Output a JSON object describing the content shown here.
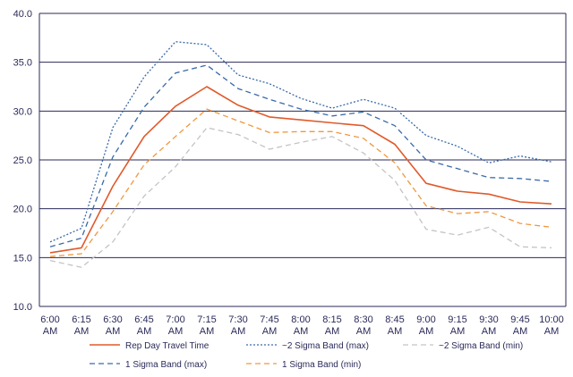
{
  "chart_data": {
    "type": "line",
    "title": "",
    "xlabel": "",
    "ylabel": "",
    "ylim": [
      10.0,
      40.0
    ],
    "yticks": [
      "10.0",
      "15.0",
      "20.0",
      "25.0",
      "30.0",
      "35.0",
      "40.0"
    ],
    "x": [
      [
        "6:00",
        "AM"
      ],
      [
        "6:15",
        "AM"
      ],
      [
        "6:30",
        "AM"
      ],
      [
        "6:45",
        "AM"
      ],
      [
        "7:00",
        "AM"
      ],
      [
        "7:15",
        "AM"
      ],
      [
        "7:30",
        "AM"
      ],
      [
        "7:45",
        "AM"
      ],
      [
        "8:00",
        "AM"
      ],
      [
        "8:15",
        "AM"
      ],
      [
        "8:30",
        "AM"
      ],
      [
        "8:45",
        "AM"
      ],
      [
        "9:00",
        "AM"
      ],
      [
        "9:15",
        "AM"
      ],
      [
        "9:30",
        "AM"
      ],
      [
        "9:45",
        "AM"
      ],
      [
        "10:00",
        "AM"
      ]
    ],
    "grid": true,
    "legend_position": "bottom",
    "series": [
      {
        "name": "Rep Day Travel Time",
        "color": "#e05a2b",
        "style": "solid",
        "values": [
          15.5,
          16.0,
          22.3,
          27.4,
          30.5,
          32.5,
          30.6,
          29.4,
          29.1,
          28.8,
          28.5,
          26.6,
          22.6,
          21.8,
          21.5,
          20.7,
          20.5
        ]
      },
      {
        "name": "~2 Sigma Band (max)",
        "color": "#3a6aa8",
        "style": "dotted",
        "values": [
          16.6,
          18.0,
          28.3,
          33.5,
          37.1,
          36.8,
          33.7,
          32.8,
          31.3,
          30.3,
          31.2,
          30.3,
          27.5,
          26.4,
          24.7,
          25.4,
          24.8
        ]
      },
      {
        "name": "~2 Sigma Band (min)",
        "color": "#c4c4c4",
        "style": "dashed",
        "values": [
          14.7,
          14.0,
          16.6,
          21.3,
          24.3,
          28.3,
          27.6,
          26.1,
          26.8,
          27.4,
          25.7,
          22.9,
          17.9,
          17.3,
          18.1,
          16.1,
          16.0
        ]
      },
      {
        "name": "1 Sigma Band (max)",
        "color": "#3a6aa8",
        "style": "dashed",
        "values": [
          16.1,
          17.0,
          25.3,
          30.4,
          33.9,
          34.7,
          32.3,
          31.2,
          30.2,
          29.5,
          29.9,
          28.5,
          25.0,
          24.1,
          23.2,
          23.1,
          22.8
        ]
      },
      {
        "name": "1 Sigma Band (min)",
        "color": "#f0973e",
        "style": "dashed",
        "values": [
          15.1,
          15.4,
          19.7,
          24.5,
          27.4,
          30.2,
          29.0,
          27.8,
          27.9,
          27.9,
          27.2,
          24.7,
          20.3,
          19.5,
          19.7,
          18.5,
          18.1
        ]
      }
    ]
  }
}
